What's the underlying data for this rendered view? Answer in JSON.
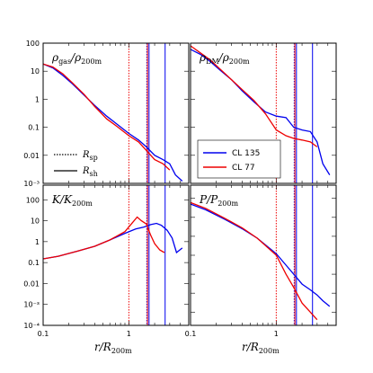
{
  "chart_data": [
    {
      "type": "line",
      "title": "ρgas/ρ200m",
      "title_main": "ρ",
      "title_sub": "gas",
      "title_div": "/ρ",
      "title_sub2": "200m",
      "xscale": "log",
      "yscale": "log",
      "xlim": [
        0.1,
        5
      ],
      "ylim": [
        0.001,
        100
      ],
      "yticks": [
        "10⁻³",
        "0.01",
        "0.1",
        "1",
        "10",
        "100"
      ],
      "ytick_values": [
        0.001,
        0.01,
        0.1,
        1,
        10,
        100
      ],
      "series": [
        {
          "name": "CL 135",
          "color": "#0000ee",
          "x": [
            0.1,
            0.13,
            0.17,
            0.22,
            0.3,
            0.4,
            0.55,
            0.75,
            1.0,
            1.3,
            1.6,
            2.0,
            2.5,
            3.0,
            3.5,
            4.2
          ],
          "y": [
            18,
            13,
            7,
            3.5,
            1.4,
            0.6,
            0.25,
            0.12,
            0.06,
            0.035,
            0.02,
            0.01,
            0.007,
            0.005,
            0.002,
            0.0012
          ]
        },
        {
          "name": "CL 77",
          "color": "#ee0000",
          "x": [
            0.1,
            0.13,
            0.17,
            0.22,
            0.3,
            0.4,
            0.55,
            0.75,
            1.0,
            1.3,
            1.6,
            2.0,
            2.5,
            3.0
          ],
          "y": [
            18,
            14,
            8,
            3.8,
            1.5,
            0.55,
            0.2,
            0.1,
            0.05,
            0.03,
            0.015,
            0.007,
            0.005,
            0.003
          ]
        }
      ],
      "vlines": [
        {
          "x": 1.0,
          "color": "#ee0000",
          "style": "dotted"
        },
        {
          "x": 1.62,
          "color": "#0000ee",
          "style": "dotted"
        },
        {
          "x": 1.65,
          "color": "#ee0000",
          "style": "solid"
        },
        {
          "x": 1.72,
          "color": "#0000ee",
          "style": "solid"
        },
        {
          "x": 2.65,
          "color": "#0000ee",
          "style": "solid"
        }
      ]
    },
    {
      "type": "line",
      "title": "ρDM/ρ200m",
      "title_main": "ρ",
      "title_sub": "DM",
      "title_div": "/ρ",
      "title_sub2": "200m",
      "xscale": "log",
      "yscale": "log",
      "xlim": [
        0.1,
        5
      ],
      "ylim": [
        0.001,
        100
      ],
      "series": [
        {
          "name": "CL 135",
          "color": "#0000ee",
          "x": [
            0.1,
            0.13,
            0.17,
            0.22,
            0.3,
            0.4,
            0.55,
            0.75,
            1.0,
            1.3,
            1.6,
            2.0,
            2.5,
            3.0,
            3.5,
            4.2
          ],
          "y": [
            60,
            40,
            22,
            11,
            5,
            2,
            0.8,
            0.35,
            0.25,
            0.22,
            0.1,
            0.08,
            0.07,
            0.03,
            0.005,
            0.002
          ]
        },
        {
          "name": "CL 77",
          "color": "#ee0000",
          "x": [
            0.1,
            0.13,
            0.17,
            0.22,
            0.3,
            0.4,
            0.55,
            0.75,
            1.0,
            1.3,
            1.6,
            2.0,
            2.5,
            3.0
          ],
          "y": [
            80,
            45,
            25,
            12,
            5,
            2.2,
            0.9,
            0.3,
            0.08,
            0.05,
            0.04,
            0.035,
            0.03,
            0.02
          ]
        }
      ],
      "vlines": [
        {
          "x": 1.0,
          "color": "#ee0000",
          "style": "dotted"
        },
        {
          "x": 1.62,
          "color": "#0000ee",
          "style": "dotted"
        },
        {
          "x": 1.65,
          "color": "#ee0000",
          "style": "solid"
        },
        {
          "x": 1.72,
          "color": "#0000ee",
          "style": "solid"
        },
        {
          "x": 2.65,
          "color": "#0000ee",
          "style": "solid"
        }
      ]
    },
    {
      "type": "line",
      "title": "K/K200m",
      "title_main": "K",
      "title_sub": "",
      "title_div": "/K",
      "title_sub2": "200m",
      "xscale": "log",
      "yscale": "log",
      "xlim": [
        0.1,
        5
      ],
      "ylim": [
        0.0001,
        500
      ],
      "yticks": [
        "10⁻⁴",
        "10⁻³",
        "0.01",
        "0.1",
        "1",
        "10",
        "100"
      ],
      "ytick_values": [
        0.0001,
        0.001,
        0.01,
        0.1,
        1,
        10,
        100
      ],
      "series": [
        {
          "name": "CL 135",
          "color": "#0000ee",
          "x": [
            0.1,
            0.15,
            0.25,
            0.4,
            0.6,
            0.9,
            1.2,
            1.5,
            1.8,
            2.1,
            2.4,
            2.8,
            3.2,
            3.6,
            4.2
          ],
          "y": [
            0.15,
            0.2,
            0.35,
            0.6,
            1.2,
            2.5,
            4,
            5,
            6.5,
            7.5,
            6,
            3.5,
            1.5,
            0.3,
            0.5
          ]
        },
        {
          "name": "CL 77",
          "color": "#ee0000",
          "x": [
            0.1,
            0.15,
            0.25,
            0.4,
            0.6,
            0.9,
            1.1,
            1.25,
            1.4,
            1.6,
            1.8,
            2.0,
            2.3,
            2.6
          ],
          "y": [
            0.15,
            0.2,
            0.35,
            0.6,
            1.2,
            3,
            8,
            15,
            10,
            7,
            2,
            0.8,
            0.4,
            0.3
          ]
        }
      ],
      "vlines": [
        {
          "x": 1.0,
          "color": "#ee0000",
          "style": "dotted"
        },
        {
          "x": 1.62,
          "color": "#0000ee",
          "style": "dotted"
        },
        {
          "x": 1.65,
          "color": "#ee0000",
          "style": "solid"
        },
        {
          "x": 1.72,
          "color": "#0000ee",
          "style": "solid"
        },
        {
          "x": 2.65,
          "color": "#0000ee",
          "style": "solid"
        }
      ]
    },
    {
      "type": "line",
      "title": "P/P200m",
      "title_main": "P",
      "title_sub": "",
      "title_div": "/P",
      "title_sub2": "200m",
      "xscale": "log",
      "yscale": "log",
      "xlim": [
        0.1,
        5
      ],
      "ylim": [
        2e-05,
        500
      ],
      "series": [
        {
          "name": "CL 135",
          "color": "#0000ee",
          "x": [
            0.1,
            0.15,
            0.25,
            0.4,
            0.6,
            1.0,
            1.3,
            1.6,
            2.0,
            2.5,
            3.0,
            3.5,
            4.2
          ],
          "y": [
            50,
            25,
            8,
            2.5,
            0.8,
            0.12,
            0.03,
            0.01,
            0.003,
            0.0015,
            0.0008,
            0.0004,
            0.0002
          ]
        },
        {
          "name": "CL 77",
          "color": "#ee0000",
          "x": [
            0.1,
            0.15,
            0.25,
            0.4,
            0.6,
            1.0,
            1.3,
            1.6,
            2.0,
            2.5,
            3.0
          ],
          "y": [
            60,
            30,
            9,
            2.8,
            0.8,
            0.1,
            0.01,
            0.002,
            0.0003,
            0.0001,
            4e-05
          ]
        }
      ],
      "vlines": [
        {
          "x": 1.0,
          "color": "#ee0000",
          "style": "dotted"
        },
        {
          "x": 1.62,
          "color": "#0000ee",
          "style": "dotted"
        },
        {
          "x": 1.65,
          "color": "#ee0000",
          "style": "solid"
        },
        {
          "x": 1.72,
          "color": "#0000ee",
          "style": "solid"
        },
        {
          "x": 2.65,
          "color": "#0000ee",
          "style": "solid"
        }
      ]
    }
  ],
  "xticks": [
    "0.1",
    "1"
  ],
  "xtick_values": [
    0.1,
    1
  ],
  "xlabel_main": "r",
  "xlabel_div": "/R",
  "xlabel_sub": "200m",
  "legend_lines": [
    {
      "label_main": "R",
      "label_sub": "sp",
      "style": "dotted"
    },
    {
      "label_main": "R",
      "label_sub": "sh",
      "style": "solid"
    }
  ],
  "legend_series": [
    {
      "label": "CL 135",
      "color": "#0000ee"
    },
    {
      "label": "CL 77",
      "color": "#ee0000"
    }
  ]
}
